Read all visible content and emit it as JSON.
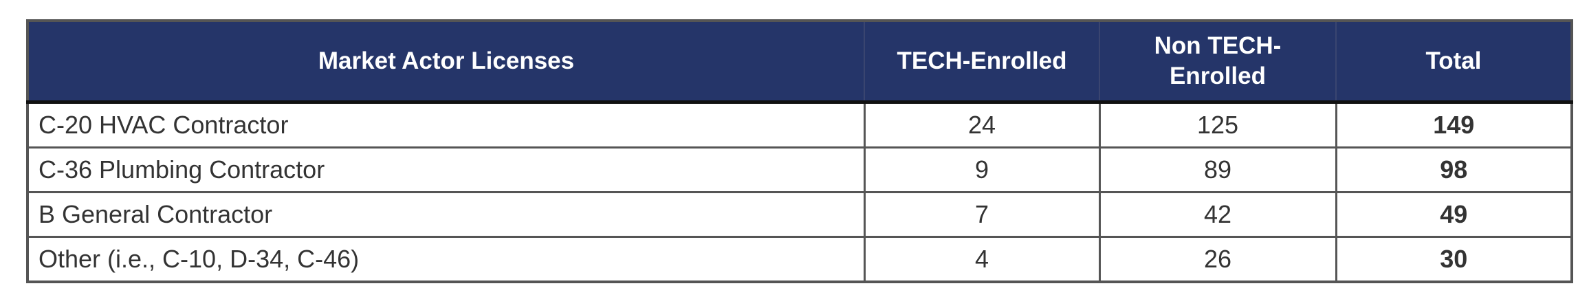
{
  "table": {
    "headers": [
      "Market Actor Licenses",
      "TECH-Enrolled",
      "Non TECH-Enrolled",
      "Total"
    ],
    "rows": [
      {
        "license": "C-20 HVAC Contractor",
        "tech_enrolled": "24",
        "non_tech_enrolled": "125",
        "total": "149"
      },
      {
        "license": "C-36 Plumbing Contractor",
        "tech_enrolled": "9",
        "non_tech_enrolled": "89",
        "total": "98"
      },
      {
        "license": "B General Contractor",
        "tech_enrolled": "7",
        "non_tech_enrolled": "42",
        "total": "49"
      },
      {
        "license": "Other (i.e., C-10, D-34, C-46)",
        "tech_enrolled": "4",
        "non_tech_enrolled": "26",
        "total": "30"
      }
    ],
    "colors": {
      "header_bg": "#253569",
      "header_text": "#ffffff",
      "border": "#555555"
    }
  }
}
